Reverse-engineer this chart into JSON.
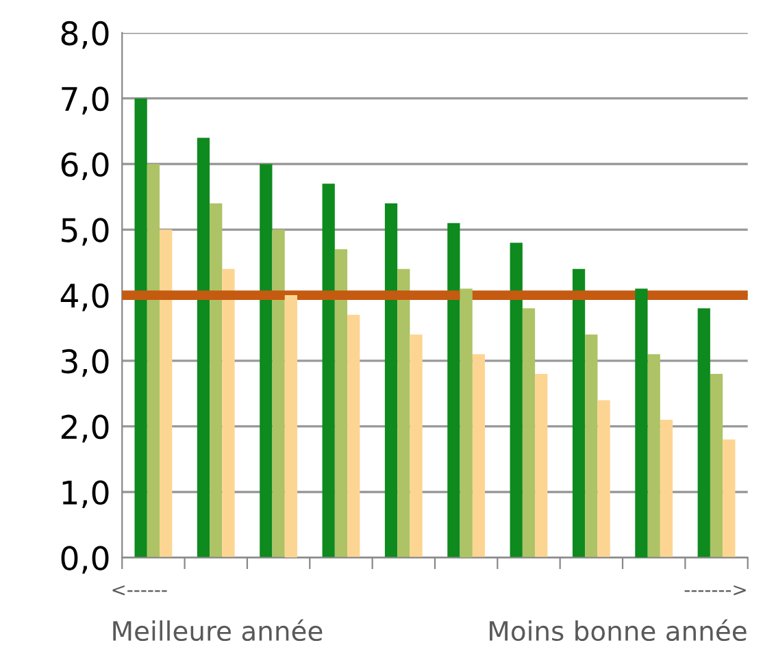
{
  "chart_data": {
    "type": "bar",
    "categories": [
      null,
      null,
      null,
      null,
      null,
      null,
      null,
      null,
      null,
      null
    ],
    "series": [
      {
        "color": "#0e8a1e",
        "values": [
          7.0,
          6.4,
          6.0,
          5.7,
          5.4,
          5.1,
          4.8,
          4.4,
          4.1,
          3.8
        ]
      },
      {
        "color": "#adc365",
        "values": [
          6.0,
          5.4,
          5.0,
          4.7,
          4.4,
          4.1,
          3.8,
          3.4,
          3.1,
          2.8
        ]
      },
      {
        "color": "#fdd592",
        "values": [
          5.0,
          4.4,
          4.0,
          3.7,
          3.4,
          3.1,
          2.8,
          2.4,
          2.1,
          1.8
        ]
      }
    ],
    "ylim": [
      0,
      8
    ],
    "yticks": [
      {
        "value": 0,
        "label": "0,0"
      },
      {
        "value": 1,
        "label": "1,0"
      },
      {
        "value": 2,
        "label": "2,0"
      },
      {
        "value": 3,
        "label": "3,0"
      },
      {
        "value": 4,
        "label": "4,0"
      },
      {
        "value": 5,
        "label": "5,0"
      },
      {
        "value": 6,
        "label": "6,0"
      },
      {
        "value": 7,
        "label": "7,0"
      },
      {
        "value": 8,
        "label": "8,0"
      }
    ],
    "grid": "y",
    "ref_lines": [
      {
        "axis": "y",
        "value": 4,
        "color": "#c55a11"
      }
    ],
    "annotations": [
      "<------",
      "------->",
      "Meilleure année",
      "Moins bonne année"
    ]
  }
}
